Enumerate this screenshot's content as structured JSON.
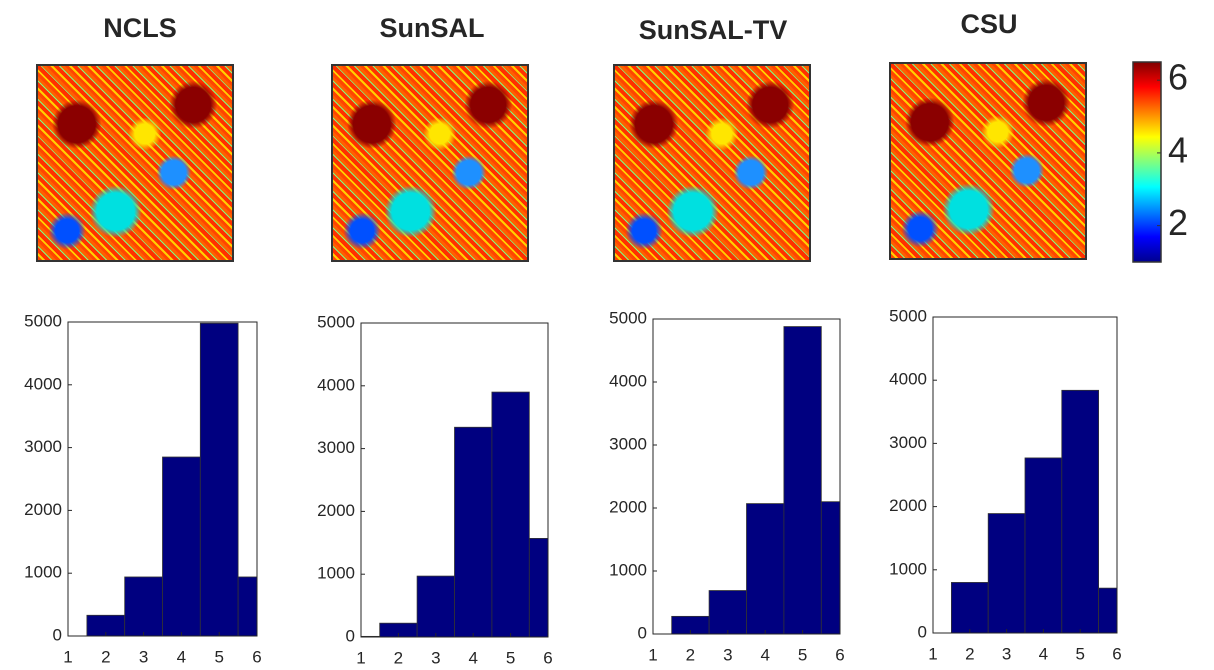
{
  "chart_data": [
    {
      "type": "histogram",
      "title": "NCLS",
      "bins": [
        0.5,
        1.5,
        2.5,
        3.5,
        4.5,
        5.5,
        6.5
      ],
      "values": [
        0,
        330,
        940,
        2850,
        4980,
        940
      ],
      "color": "#000080",
      "xlim": [
        1,
        6
      ],
      "xticks": [
        1,
        2,
        3,
        4,
        5,
        6
      ],
      "ylim": [
        0,
        5000
      ],
      "yticks": [
        0,
        1000,
        2000,
        3000,
        4000,
        5000
      ]
    },
    {
      "type": "histogram",
      "title": "SunSAL",
      "bins": [
        0.5,
        1.5,
        2.5,
        3.5,
        4.5,
        5.5,
        6.5
      ],
      "values": [
        10,
        220,
        970,
        3340,
        3900,
        1570
      ],
      "color": "#000080",
      "xlim": [
        1,
        6
      ],
      "xticks": [
        1,
        2,
        3,
        4,
        5,
        6
      ],
      "ylim": [
        0,
        5000
      ],
      "yticks": [
        0,
        1000,
        2000,
        3000,
        4000,
        5000
      ]
    },
    {
      "type": "histogram",
      "title": "SunSAL-TV",
      "bins": [
        0.5,
        1.5,
        2.5,
        3.5,
        4.5,
        5.5,
        6.5
      ],
      "values": [
        0,
        280,
        690,
        2070,
        4880,
        2100
      ],
      "color": "#000080",
      "xlim": [
        1,
        6
      ],
      "xticks": [
        1,
        2,
        3,
        4,
        5,
        6
      ],
      "ylim": [
        0,
        5000
      ],
      "yticks": [
        0,
        1000,
        2000,
        3000,
        4000,
        5000
      ]
    },
    {
      "type": "histogram",
      "title": "CSU",
      "bins": [
        0.5,
        1.5,
        2.5,
        3.5,
        4.5,
        5.5,
        6.5
      ],
      "values": [
        0,
        800,
        1890,
        2770,
        3840,
        710
      ],
      "color": "#000080",
      "xlim": [
        1,
        6
      ],
      "xticks": [
        1,
        2,
        3,
        4,
        5,
        6
      ],
      "ylim": [
        0,
        5000
      ],
      "yticks": [
        0,
        1000,
        2000,
        3000,
        4000,
        5000
      ]
    }
  ],
  "colorbar": {
    "lim": [
      1,
      6.5
    ],
    "ticks": [
      2,
      4,
      6
    ]
  }
}
